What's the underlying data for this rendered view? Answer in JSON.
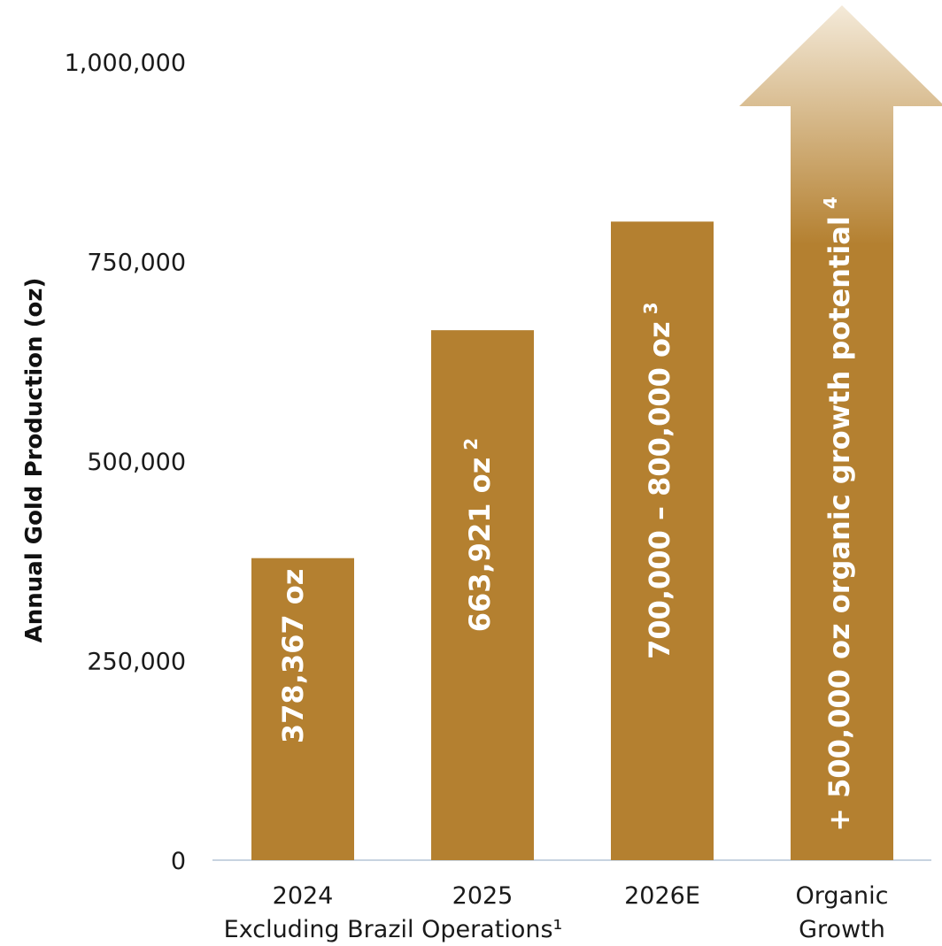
{
  "chart_data": {
    "type": "bar",
    "ylabel": "Annual Gold Production (oz)",
    "xlabel": "Excluding Brazil Operations¹",
    "ylim": [
      0,
      1000000
    ],
    "y_ticks": [
      {
        "value": 0,
        "label": "0"
      },
      {
        "value": 250000,
        "label": "250,000"
      },
      {
        "value": 500000,
        "label": "500,000"
      },
      {
        "value": 750000,
        "label": "750,000"
      },
      {
        "value": 1000000,
        "label": "1,000,000"
      }
    ],
    "grid": false,
    "categories": [
      {
        "label": [
          "2024"
        ],
        "value": 378367,
        "bar_label": "378,367 oz",
        "sup": ""
      },
      {
        "label": [
          "2025"
        ],
        "value": 663921,
        "bar_label": "663,921 oz",
        "sup": "2"
      },
      {
        "label": [
          "2026E"
        ],
        "value": 800000,
        "bar_label": "700,000 – 800,000 oz",
        "sup": "3"
      },
      {
        "label": [
          "Organic",
          "Growth"
        ],
        "value": 1000000,
        "bar_label": "+ 500,000 oz organic growth potential",
        "sup": "4",
        "shape": "arrow"
      }
    ],
    "colors": {
      "bar": "#b48030",
      "arrow_light": "#f4ead9",
      "axis": "#c8d3e0"
    }
  }
}
